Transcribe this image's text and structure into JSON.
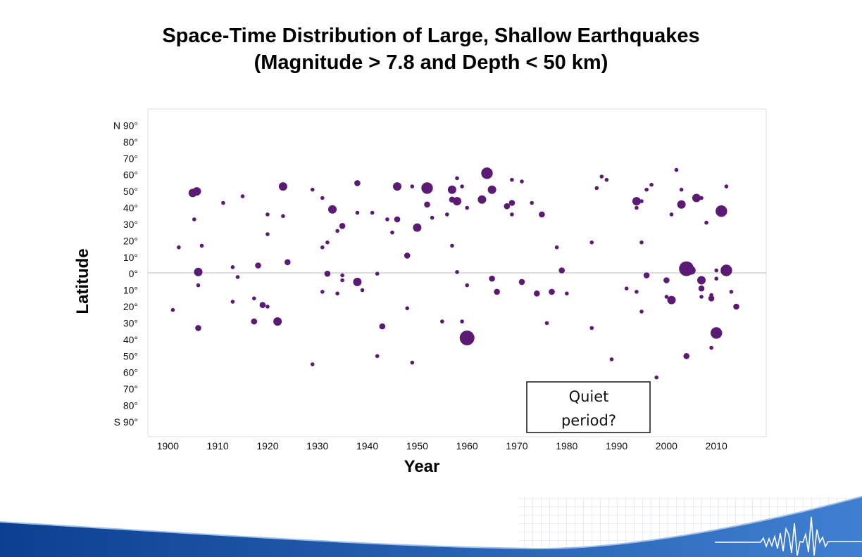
{
  "slide": {
    "title_line_1": "Space-Time Distribution of Large, Shallow Earthquakes",
    "title_line_2": "(Magnitude > 7.8 and Depth < 50 km)"
  },
  "annotation": {
    "line_1": "Quiet",
    "line_2": "period?"
  },
  "colors": {
    "marker": "#5b1a73",
    "zero_line": "#bbbbbb",
    "plot_border": "#dddddd",
    "footer_blue_dark": "#0d3f91",
    "footer_blue_light": "#3f7fd1"
  },
  "chart_data": {
    "type": "scatter",
    "title": "Space-Time Distribution of Large, Shallow Earthquakes (Magnitude > 7.8 and Depth < 50 km)",
    "xlabel": "Year",
    "ylabel": "Latitude",
    "xlim": [
      1896,
      2020
    ],
    "ylim": [
      -99,
      100
    ],
    "grid": false,
    "legend": "none",
    "x_ticks": [
      1900,
      1910,
      1920,
      1930,
      1940,
      1950,
      1960,
      1970,
      1980,
      1990,
      2000,
      2010
    ],
    "x_tick_labels": [
      "1900",
      "1910",
      "1920",
      "1930",
      "1940",
      "1950",
      "1960",
      "1970",
      "1980",
      "1990",
      "2000",
      "2010"
    ],
    "y_ticks": [
      90,
      80,
      70,
      60,
      50,
      40,
      30,
      20,
      10,
      0,
      -10,
      -20,
      -30,
      -40,
      -50,
      -60,
      -70,
      -80,
      -90
    ],
    "y_tick_labels": [
      "N 90°",
      "80°",
      "70°",
      "60°",
      "50°",
      "40°",
      "30°",
      "20°",
      "10°",
      "0°",
      "10°",
      "20°",
      "30°",
      "40°",
      "50°",
      "60°",
      "70°",
      "80°",
      "S 90°"
    ],
    "series": [
      {
        "points": [
          {
            "x": 1901.0,
            "y": -22,
            "s": 1
          },
          {
            "x": 1902.2,
            "y": 16,
            "s": 1
          },
          {
            "x": 1905.0,
            "y": 49,
            "s": 3
          },
          {
            "x": 1905.8,
            "y": 50,
            "s": 3
          },
          {
            "x": 1905.3,
            "y": 33,
            "s": 1
          },
          {
            "x": 1906.1,
            "y": 1,
            "s": 3
          },
          {
            "x": 1906.1,
            "y": -7,
            "s": 1
          },
          {
            "x": 1906.1,
            "y": -33,
            "s": 2
          },
          {
            "x": 1906.8,
            "y": 17,
            "s": 1
          },
          {
            "x": 1911.1,
            "y": 43,
            "s": 1
          },
          {
            "x": 1913.0,
            "y": 4,
            "s": 1
          },
          {
            "x": 1913.0,
            "y": -17,
            "s": 1
          },
          {
            "x": 1914.0,
            "y": -2,
            "s": 1
          },
          {
            "x": 1915.0,
            "y": 47,
            "s": 1
          },
          {
            "x": 1917.3,
            "y": -15,
            "s": 1
          },
          {
            "x": 1917.3,
            "y": -29,
            "s": 2
          },
          {
            "x": 1918.1,
            "y": 5,
            "s": 2
          },
          {
            "x": 1919.0,
            "y": -19,
            "s": 2
          },
          {
            "x": 1920.0,
            "y": 36,
            "s": 1
          },
          {
            "x": 1920.0,
            "y": 24,
            "s": 1
          },
          {
            "x": 1920.0,
            "y": -20,
            "s": 1
          },
          {
            "x": 1922.0,
            "y": -29,
            "s": 3
          },
          {
            "x": 1923.1,
            "y": 53,
            "s": 3
          },
          {
            "x": 1923.1,
            "y": 35,
            "s": 1
          },
          {
            "x": 1924.0,
            "y": 7,
            "s": 2
          },
          {
            "x": 1929.0,
            "y": 51,
            "s": 1
          },
          {
            "x": 1929.0,
            "y": -55,
            "s": 1
          },
          {
            "x": 1931.0,
            "y": 46,
            "s": 1
          },
          {
            "x": 1931.0,
            "y": 16,
            "s": 1
          },
          {
            "x": 1931.0,
            "y": -11,
            "s": 1
          },
          {
            "x": 1932.0,
            "y": 19,
            "s": 1
          },
          {
            "x": 1932.0,
            "y": 0,
            "s": 2
          },
          {
            "x": 1933.0,
            "y": 39,
            "s": 3
          },
          {
            "x": 1934.0,
            "y": 26,
            "s": 1
          },
          {
            "x": 1934.0,
            "y": -12,
            "s": 1
          },
          {
            "x": 1935.0,
            "y": 29,
            "s": 2
          },
          {
            "x": 1935.0,
            "y": -1,
            "s": 1
          },
          {
            "x": 1935.0,
            "y": -4,
            "s": 1
          },
          {
            "x": 1938.0,
            "y": 55,
            "s": 2
          },
          {
            "x": 1938.0,
            "y": 37,
            "s": 1
          },
          {
            "x": 1938.0,
            "y": -5,
            "s": 3
          },
          {
            "x": 1939.0,
            "y": -10,
            "s": 1
          },
          {
            "x": 1941.0,
            "y": 37,
            "s": 1
          },
          {
            "x": 1942.0,
            "y": 0,
            "s": 1
          },
          {
            "x": 1942.0,
            "y": -50,
            "s": 1
          },
          {
            "x": 1943.0,
            "y": -32,
            "s": 2
          },
          {
            "x": 1944.0,
            "y": 33,
            "s": 1
          },
          {
            "x": 1945.0,
            "y": 25,
            "s": 1
          },
          {
            "x": 1946.0,
            "y": 53,
            "s": 3
          },
          {
            "x": 1946.0,
            "y": 33,
            "s": 2
          },
          {
            "x": 1948.0,
            "y": 11,
            "s": 2
          },
          {
            "x": 1948.0,
            "y": -21,
            "s": 1
          },
          {
            "x": 1949.0,
            "y": 53,
            "s": 1
          },
          {
            "x": 1949.0,
            "y": -54,
            "s": 1
          },
          {
            "x": 1950.0,
            "y": 28,
            "s": 3
          },
          {
            "x": 1952.0,
            "y": 52,
            "s": 4
          },
          {
            "x": 1952.0,
            "y": 42,
            "s": 2
          },
          {
            "x": 1953.0,
            "y": 34,
            "s": 1
          },
          {
            "x": 1955.0,
            "y": -29,
            "s": 1
          },
          {
            "x": 1956.0,
            "y": 36,
            "s": 1
          },
          {
            "x": 1957.0,
            "y": 51,
            "s": 3
          },
          {
            "x": 1957.0,
            "y": 45,
            "s": 2
          },
          {
            "x": 1957.0,
            "y": 17,
            "s": 1
          },
          {
            "x": 1958.0,
            "y": 58,
            "s": 1
          },
          {
            "x": 1958.0,
            "y": 44,
            "s": 3
          },
          {
            "x": 1958.0,
            "y": 1,
            "s": 1
          },
          {
            "x": 1959.0,
            "y": 53,
            "s": 1
          },
          {
            "x": 1959.0,
            "y": -29,
            "s": 1
          },
          {
            "x": 1960.0,
            "y": 40,
            "s": 1
          },
          {
            "x": 1960.0,
            "y": -7,
            "s": 1
          },
          {
            "x": 1960.0,
            "y": -39,
            "s": 5
          },
          {
            "x": 1963.0,
            "y": 45,
            "s": 3
          },
          {
            "x": 1964.0,
            "y": 61,
            "s": 4
          },
          {
            "x": 1965.0,
            "y": 51,
            "s": 3
          },
          {
            "x": 1965.0,
            "y": -3,
            "s": 2
          },
          {
            "x": 1966.0,
            "y": -11,
            "s": 2
          },
          {
            "x": 1968.0,
            "y": 41,
            "s": 2
          },
          {
            "x": 1969.0,
            "y": 57,
            "s": 1
          },
          {
            "x": 1969.0,
            "y": 43,
            "s": 2
          },
          {
            "x": 1969.0,
            "y": 36,
            "s": 1
          },
          {
            "x": 1971.0,
            "y": 56,
            "s": 1
          },
          {
            "x": 1971.0,
            "y": -5,
            "s": 2
          },
          {
            "x": 1973.0,
            "y": 43,
            "s": 1
          },
          {
            "x": 1974.0,
            "y": -12,
            "s": 2
          },
          {
            "x": 1975.0,
            "y": 36,
            "s": 2
          },
          {
            "x": 1976.0,
            "y": -30,
            "s": 1
          },
          {
            "x": 1977.0,
            "y": -11,
            "s": 2
          },
          {
            "x": 1978.0,
            "y": 16,
            "s": 1
          },
          {
            "x": 1979.0,
            "y": 2,
            "s": 2
          },
          {
            "x": 1980.0,
            "y": -12,
            "s": 1
          },
          {
            "x": 1985.0,
            "y": 19,
            "s": 1
          },
          {
            "x": 1985.0,
            "y": -33,
            "s": 1
          },
          {
            "x": 1986.0,
            "y": 52,
            "s": 1
          },
          {
            "x": 1987.0,
            "y": 59,
            "s": 1
          },
          {
            "x": 1988.0,
            "y": 57,
            "s": 1
          },
          {
            "x": 1989.0,
            "y": -52,
            "s": 1
          },
          {
            "x": 1992.0,
            "y": -9,
            "s": 1
          },
          {
            "x": 1994.0,
            "y": 44,
            "s": 3
          },
          {
            "x": 1994.0,
            "y": 40,
            "s": 1
          },
          {
            "x": 1994.0,
            "y": -11,
            "s": 1
          },
          {
            "x": 1995.0,
            "y": 44,
            "s": 1
          },
          {
            "x": 1995.0,
            "y": 19,
            "s": 1
          },
          {
            "x": 1995.0,
            "y": -23,
            "s": 1
          },
          {
            "x": 1996.0,
            "y": 51,
            "s": 1
          },
          {
            "x": 1996.0,
            "y": -1,
            "s": 2
          },
          {
            "x": 1997.0,
            "y": 54,
            "s": 1
          },
          {
            "x": 1998.0,
            "y": -63,
            "s": 1
          },
          {
            "x": 2000.0,
            "y": -4,
            "s": 2
          },
          {
            "x": 2000.0,
            "y": -14,
            "s": 1
          },
          {
            "x": 2001.0,
            "y": 36,
            "s": 1
          },
          {
            "x": 2001.0,
            "y": -16,
            "s": 3
          },
          {
            "x": 2002.0,
            "y": 63,
            "s": 1
          },
          {
            "x": 2003.0,
            "y": 51,
            "s": 1
          },
          {
            "x": 2003.0,
            "y": 42,
            "s": 3
          },
          {
            "x": 2004.0,
            "y": 3,
            "s": 5
          },
          {
            "x": 2004.0,
            "y": -50,
            "s": 2
          },
          {
            "x": 2005.0,
            "y": 2,
            "s": 3
          },
          {
            "x": 2006.0,
            "y": 46,
            "s": 3
          },
          {
            "x": 2007.0,
            "y": 46,
            "s": 1
          },
          {
            "x": 2007.0,
            "y": -4,
            "s": 3
          },
          {
            "x": 2007.0,
            "y": -9,
            "s": 2
          },
          {
            "x": 2007.0,
            "y": -14,
            "s": 1
          },
          {
            "x": 2008.0,
            "y": 31,
            "s": 1
          },
          {
            "x": 2009.0,
            "y": -13,
            "s": 1
          },
          {
            "x": 2009.0,
            "y": -15,
            "s": 2
          },
          {
            "x": 2009.0,
            "y": -45,
            "s": 1
          },
          {
            "x": 2010.0,
            "y": -36,
            "s": 4
          },
          {
            "x": 2010.0,
            "y": 2,
            "s": 1
          },
          {
            "x": 2010.0,
            "y": -3,
            "s": 1
          },
          {
            "x": 2011.0,
            "y": 38,
            "s": 4
          },
          {
            "x": 2012.0,
            "y": 2,
            "s": 4
          },
          {
            "x": 2012.0,
            "y": 53,
            "s": 1
          },
          {
            "x": 2013.0,
            "y": -11,
            "s": 1
          },
          {
            "x": 2014.0,
            "y": -20,
            "s": 2
          }
        ]
      }
    ]
  }
}
